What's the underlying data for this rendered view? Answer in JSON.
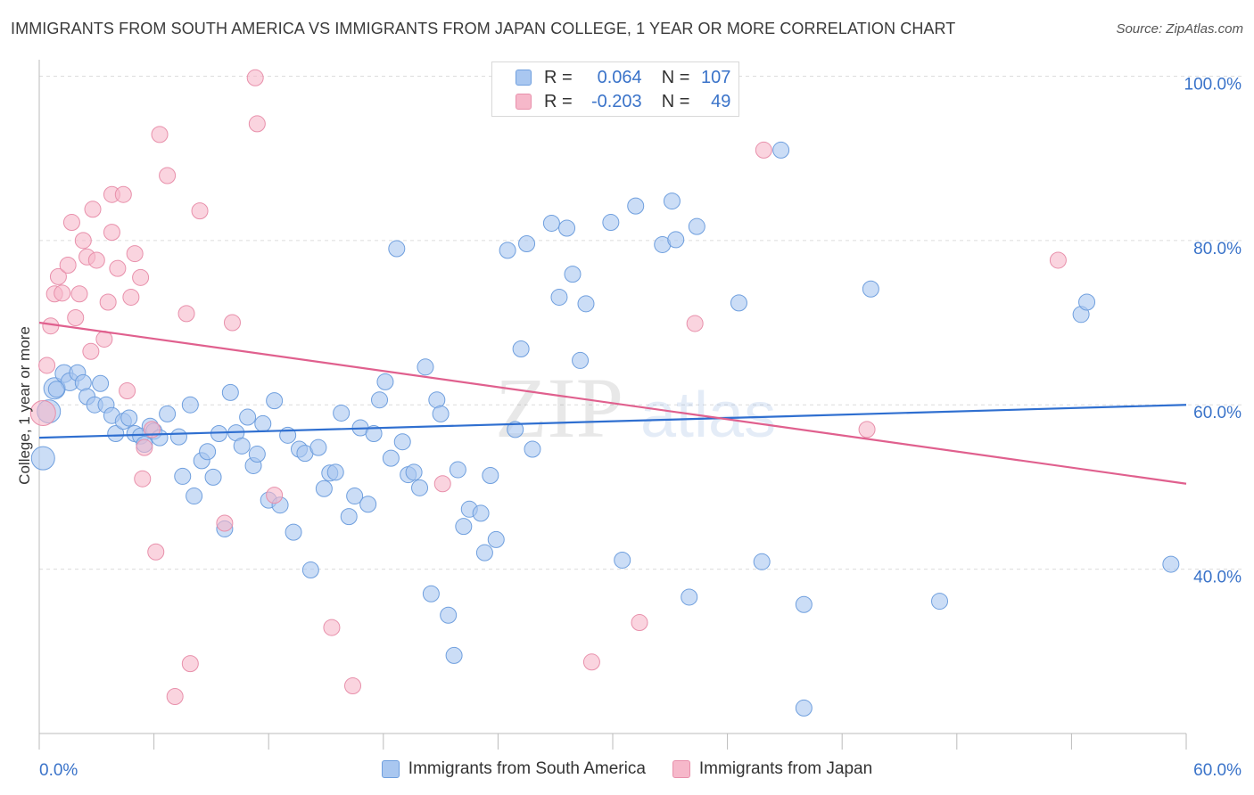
{
  "header": {
    "title": "IMMIGRANTS FROM SOUTH AMERICA VS IMMIGRANTS FROM JAPAN COLLEGE, 1 YEAR OR MORE CORRELATION CHART",
    "source": "Source: ZipAtlas.com"
  },
  "watermark": {
    "zip": "ZIP",
    "atlas": "atlas"
  },
  "stats": {
    "series1": {
      "r_label": "R =",
      "r_value": "0.064",
      "n_label": "N =",
      "n_value": "107",
      "color": "#a9c7f0"
    },
    "series2": {
      "r_label": "R =",
      "r_value": "-0.203",
      "n_label": "N =",
      "n_value": "49",
      "color": "#f6b8ca"
    }
  },
  "legend": {
    "series1": "Immigrants from South America",
    "series2": "Immigrants from Japan"
  },
  "colors": {
    "blue_fill": "#a9c7f0",
    "blue_stroke": "#6f9fde",
    "blue_line": "#2f6fd0",
    "pink_fill": "#f6b8ca",
    "pink_stroke": "#e890ab",
    "pink_line": "#e0608e",
    "axis_text": "#3a73c9",
    "grid": "#dcdcdc"
  },
  "chart_data": {
    "type": "scatter",
    "title": "IMMIGRANTS FROM SOUTH AMERICA VS IMMIGRANTS FROM JAPAN COLLEGE, 1 YEAR OR MORE CORRELATION CHART",
    "xlabel": "",
    "ylabel": "College, 1 year or more",
    "xlim": [
      0,
      60
    ],
    "ylim": [
      20,
      102
    ],
    "x_tick_labels": [
      "0.0%",
      "60.0%"
    ],
    "y_tick_labels": [
      "40.0%",
      "60.0%",
      "80.0%",
      "100.0%"
    ],
    "y_ticks": [
      40,
      60,
      80,
      100
    ],
    "grid": true,
    "legend_position": "bottom",
    "series": [
      {
        "name": "Immigrants from South America",
        "trend": {
          "x": [
            0,
            60
          ],
          "y": [
            56.0,
            60.0
          ]
        },
        "points": [
          [
            0.2,
            53.5
          ],
          [
            0.5,
            59.2
          ],
          [
            0.8,
            62.0
          ],
          [
            1.3,
            63.8
          ],
          [
            1.6,
            62.8
          ],
          [
            2.0,
            63.9
          ],
          [
            2.3,
            62.7
          ],
          [
            2.5,
            61.0
          ],
          [
            2.9,
            60.0
          ],
          [
            3.2,
            62.6
          ],
          [
            3.5,
            60.0
          ],
          [
            3.8,
            58.7
          ],
          [
            4.0,
            56.5
          ],
          [
            4.4,
            58.0
          ],
          [
            4.7,
            58.4
          ],
          [
            5.0,
            56.5
          ],
          [
            5.3,
            56.2
          ],
          [
            5.5,
            55.2
          ],
          [
            5.8,
            57.4
          ],
          [
            6.0,
            56.8
          ],
          [
            6.3,
            56.0
          ],
          [
            6.7,
            58.9
          ],
          [
            7.3,
            56.1
          ],
          [
            7.5,
            51.3
          ],
          [
            7.9,
            60.0
          ],
          [
            8.1,
            48.9
          ],
          [
            8.5,
            53.2
          ],
          [
            8.8,
            54.3
          ],
          [
            9.1,
            51.2
          ],
          [
            9.4,
            56.5
          ],
          [
            9.7,
            44.9
          ],
          [
            10.0,
            61.5
          ],
          [
            10.3,
            56.6
          ],
          [
            10.6,
            55.0
          ],
          [
            10.9,
            58.5
          ],
          [
            11.2,
            52.6
          ],
          [
            11.4,
            54.0
          ],
          [
            11.7,
            57.7
          ],
          [
            12.0,
            48.4
          ],
          [
            12.3,
            60.5
          ],
          [
            12.6,
            47.8
          ],
          [
            13.0,
            56.3
          ],
          [
            13.3,
            44.5
          ],
          [
            13.6,
            54.6
          ],
          [
            13.9,
            54.1
          ],
          [
            14.2,
            39.9
          ],
          [
            14.6,
            54.8
          ],
          [
            14.9,
            49.8
          ],
          [
            15.2,
            51.7
          ],
          [
            15.5,
            51.8
          ],
          [
            15.8,
            59.0
          ],
          [
            16.2,
            46.4
          ],
          [
            16.5,
            48.9
          ],
          [
            16.8,
            57.2
          ],
          [
            17.2,
            47.9
          ],
          [
            17.5,
            56.5
          ],
          [
            17.8,
            60.6
          ],
          [
            18.1,
            62.8
          ],
          [
            18.4,
            53.5
          ],
          [
            18.7,
            79.0
          ],
          [
            19.0,
            55.5
          ],
          [
            19.3,
            51.5
          ],
          [
            19.6,
            51.8
          ],
          [
            19.9,
            49.9
          ],
          [
            20.2,
            64.6
          ],
          [
            20.5,
            37.0
          ],
          [
            20.8,
            60.6
          ],
          [
            21.0,
            58.9
          ],
          [
            21.4,
            34.4
          ],
          [
            21.7,
            29.5
          ],
          [
            21.9,
            52.1
          ],
          [
            22.2,
            45.2
          ],
          [
            22.5,
            47.3
          ],
          [
            23.1,
            46.8
          ],
          [
            23.3,
            42.0
          ],
          [
            23.6,
            51.4
          ],
          [
            23.9,
            43.6
          ],
          [
            24.5,
            78.8
          ],
          [
            24.9,
            57.0
          ],
          [
            25.2,
            66.8
          ],
          [
            25.5,
            79.6
          ],
          [
            25.8,
            54.6
          ],
          [
            26.8,
            82.1
          ],
          [
            27.2,
            73.1
          ],
          [
            27.6,
            81.5
          ],
          [
            27.9,
            75.9
          ],
          [
            28.3,
            65.4
          ],
          [
            28.6,
            72.3
          ],
          [
            29.9,
            82.2
          ],
          [
            30.5,
            41.1
          ],
          [
            31.2,
            84.2
          ],
          [
            32.6,
            79.5
          ],
          [
            33.1,
            84.8
          ],
          [
            33.3,
            80.1
          ],
          [
            34.0,
            36.6
          ],
          [
            34.4,
            81.7
          ],
          [
            36.6,
            72.4
          ],
          [
            37.8,
            40.9
          ],
          [
            38.8,
            91.0
          ],
          [
            40.0,
            35.7
          ],
          [
            40.0,
            23.1
          ],
          [
            43.5,
            74.1
          ],
          [
            47.1,
            36.1
          ],
          [
            54.5,
            71.0
          ],
          [
            54.8,
            72.5
          ],
          [
            59.2,
            40.6
          ],
          [
            0.9,
            61.9
          ]
        ],
        "radii": [
          13,
          13,
          12,
          10,
          10,
          9,
          9,
          9,
          9,
          9,
          9,
          9,
          9,
          9,
          9,
          9,
          9,
          9,
          9,
          9,
          9,
          9,
          9,
          9,
          9,
          9,
          9,
          9,
          9,
          9,
          9,
          9,
          9,
          9,
          9,
          9,
          9,
          9,
          9,
          9,
          9,
          9,
          9,
          9,
          9,
          9,
          9,
          9,
          9,
          9,
          9,
          9,
          9,
          9,
          9,
          9,
          9,
          9,
          9,
          9,
          9,
          9,
          9,
          9,
          9,
          9,
          9,
          9,
          9,
          9,
          9,
          9,
          9,
          9,
          9,
          9,
          9,
          9,
          9,
          9,
          9,
          9,
          9,
          9,
          9,
          9,
          9,
          9,
          9,
          9,
          9,
          9,
          9,
          9,
          9,
          9,
          9,
          9,
          9,
          9,
          9,
          9,
          9,
          9,
          9,
          9,
          9
        ]
      },
      {
        "name": "Immigrants from Japan",
        "trend": {
          "x": [
            0,
            60
          ],
          "y": [
            70.0,
            50.4
          ]
        },
        "points": [
          [
            0.2,
            59.0
          ],
          [
            0.4,
            64.8
          ],
          [
            0.6,
            69.6
          ],
          [
            0.8,
            73.5
          ],
          [
            1.0,
            75.6
          ],
          [
            1.2,
            73.6
          ],
          [
            1.5,
            77.0
          ],
          [
            1.7,
            82.2
          ],
          [
            1.9,
            70.6
          ],
          [
            2.1,
            73.5
          ],
          [
            2.3,
            80.0
          ],
          [
            2.5,
            78.0
          ],
          [
            2.7,
            66.5
          ],
          [
            2.8,
            83.8
          ],
          [
            3.0,
            77.6
          ],
          [
            3.4,
            68.0
          ],
          [
            3.6,
            72.5
          ],
          [
            3.8,
            81.0
          ],
          [
            3.8,
            85.6
          ],
          [
            4.1,
            76.6
          ],
          [
            4.4,
            85.6
          ],
          [
            4.6,
            61.7
          ],
          [
            4.8,
            73.1
          ],
          [
            5.0,
            78.4
          ],
          [
            5.3,
            75.5
          ],
          [
            5.4,
            51.0
          ],
          [
            5.5,
            54.8
          ],
          [
            5.9,
            57.0
          ],
          [
            6.1,
            42.1
          ],
          [
            6.3,
            92.9
          ],
          [
            6.7,
            87.9
          ],
          [
            7.1,
            24.5
          ],
          [
            7.7,
            71.1
          ],
          [
            7.9,
            28.5
          ],
          [
            8.4,
            83.6
          ],
          [
            9.7,
            45.6
          ],
          [
            10.1,
            70.0
          ],
          [
            11.3,
            99.8
          ],
          [
            11.4,
            94.2
          ],
          [
            12.3,
            49.0
          ],
          [
            15.3,
            32.9
          ],
          [
            16.4,
            25.8
          ],
          [
            21.1,
            50.4
          ],
          [
            28.9,
            28.7
          ],
          [
            31.4,
            33.5
          ],
          [
            34.3,
            69.9
          ],
          [
            37.9,
            91.0
          ],
          [
            43.3,
            57.0
          ],
          [
            53.3,
            77.6
          ]
        ],
        "radii": [
          14,
          9,
          9,
          9,
          9,
          9,
          9,
          9,
          9,
          9,
          9,
          9,
          9,
          9,
          9,
          9,
          9,
          9,
          9,
          9,
          9,
          9,
          9,
          9,
          9,
          9,
          9,
          9,
          9,
          9,
          9,
          9,
          9,
          9,
          9,
          9,
          9,
          9,
          9,
          9,
          9,
          9,
          9,
          9,
          9,
          9,
          9,
          9,
          9
        ]
      }
    ]
  }
}
